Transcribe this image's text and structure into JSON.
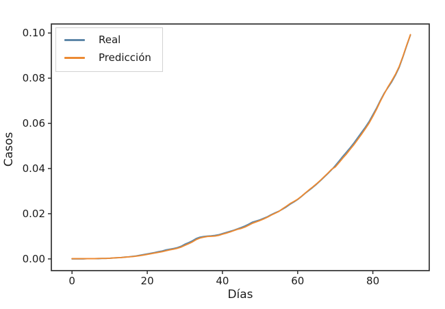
{
  "figure": {
    "background": "#ffffff",
    "spine_color": "#2f2f2f",
    "tick_color": "#2f2f2f",
    "tick_label_color": "#1a1a1a"
  },
  "chart_data": {
    "type": "line",
    "title": "",
    "xlabel": "Días",
    "ylabel": "Casos",
    "grid": false,
    "legend_position": "upper left",
    "xlim": [
      -5.5,
      95
    ],
    "ylim": [
      -0.0052,
      0.104
    ],
    "x_ticks": [
      0,
      20,
      40,
      60,
      80
    ],
    "x_tick_labels": [
      "0",
      "20",
      "40",
      "60",
      "80"
    ],
    "y_ticks": [
      0.0,
      0.02,
      0.04,
      0.06,
      0.08,
      0.1
    ],
    "y_tick_labels": [
      "0.00",
      "0.02",
      "0.04",
      "0.06",
      "0.08",
      "0.10"
    ],
    "x": [
      0,
      1,
      2,
      3,
      4,
      5,
      6,
      7,
      8,
      9,
      10,
      11,
      12,
      13,
      14,
      15,
      16,
      17,
      18,
      19,
      20,
      21,
      22,
      23,
      24,
      25,
      26,
      27,
      28,
      29,
      30,
      31,
      32,
      33,
      34,
      35,
      36,
      37,
      38,
      39,
      40,
      41,
      42,
      43,
      44,
      45,
      46,
      47,
      48,
      49,
      50,
      51,
      52,
      53,
      54,
      55,
      56,
      57,
      58,
      59,
      60,
      61,
      62,
      63,
      64,
      65,
      66,
      67,
      68,
      69,
      70,
      71,
      72,
      73,
      74,
      75,
      76,
      77,
      78,
      79,
      80,
      81,
      82,
      83,
      84,
      85,
      86,
      87,
      88,
      89,
      90
    ],
    "series": [
      {
        "name": "Real",
        "color": "#5d87a8",
        "values": [
          0.0,
          0.0,
          0.0,
          0.0,
          0.0001,
          0.0001,
          0.0001,
          0.0001,
          0.0002,
          0.0002,
          0.0003,
          0.0004,
          0.0005,
          0.0006,
          0.0008,
          0.0009,
          0.0011,
          0.0013,
          0.0016,
          0.0019,
          0.0022,
          0.0025,
          0.0028,
          0.0032,
          0.0035,
          0.004,
          0.0043,
          0.0046,
          0.005,
          0.0056,
          0.0065,
          0.0072,
          0.008,
          0.009,
          0.0096,
          0.0099,
          0.0101,
          0.0102,
          0.0104,
          0.0107,
          0.0112,
          0.0117,
          0.0122,
          0.0127,
          0.0133,
          0.0139,
          0.0146,
          0.0154,
          0.0163,
          0.0168,
          0.0173,
          0.018,
          0.0187,
          0.0196,
          0.0204,
          0.0211,
          0.022,
          0.023,
          0.0242,
          0.0252,
          0.0263,
          0.0276,
          0.029,
          0.0303,
          0.0316,
          0.033,
          0.0345,
          0.0361,
          0.0377,
          0.0394,
          0.0413,
          0.0433,
          0.0454,
          0.0473,
          0.0493,
          0.0514,
          0.0537,
          0.056,
          0.0583,
          0.0608,
          0.0638,
          0.0668,
          0.0702,
          0.0733,
          0.0758,
          0.0783,
          0.0813,
          0.0848,
          0.0894,
          0.0943,
          0.0991
        ]
      },
      {
        "name": "Predicción",
        "color": "#ec8a33",
        "values": [
          0.0001,
          0.0001,
          0.0001,
          0.0001,
          0.0001,
          0.0001,
          0.0001,
          0.0002,
          0.0002,
          0.0002,
          0.0003,
          0.0004,
          0.0005,
          0.0006,
          0.0007,
          0.0009,
          0.001,
          0.0012,
          0.0014,
          0.0017,
          0.002,
          0.0023,
          0.0026,
          0.0029,
          0.0032,
          0.0036,
          0.004,
          0.0043,
          0.0047,
          0.0052,
          0.006,
          0.0067,
          0.0075,
          0.0085,
          0.0092,
          0.0096,
          0.0099,
          0.01,
          0.0101,
          0.0104,
          0.0109,
          0.0114,
          0.0119,
          0.0125,
          0.0131,
          0.0135,
          0.0141,
          0.0149,
          0.0158,
          0.0164,
          0.017,
          0.0177,
          0.0185,
          0.0194,
          0.0202,
          0.021,
          0.0222,
          0.0233,
          0.0245,
          0.0254,
          0.0264,
          0.0277,
          0.0291,
          0.0305,
          0.0318,
          0.0332,
          0.0347,
          0.0363,
          0.0379,
          0.0396,
          0.0407,
          0.0426,
          0.0446,
          0.0465,
          0.0486,
          0.0506,
          0.0529,
          0.0552,
          0.0576,
          0.0601,
          0.0631,
          0.0663,
          0.0698,
          0.073,
          0.0761,
          0.0788,
          0.0817,
          0.0852,
          0.0897,
          0.0946,
          0.0993
        ]
      }
    ]
  }
}
